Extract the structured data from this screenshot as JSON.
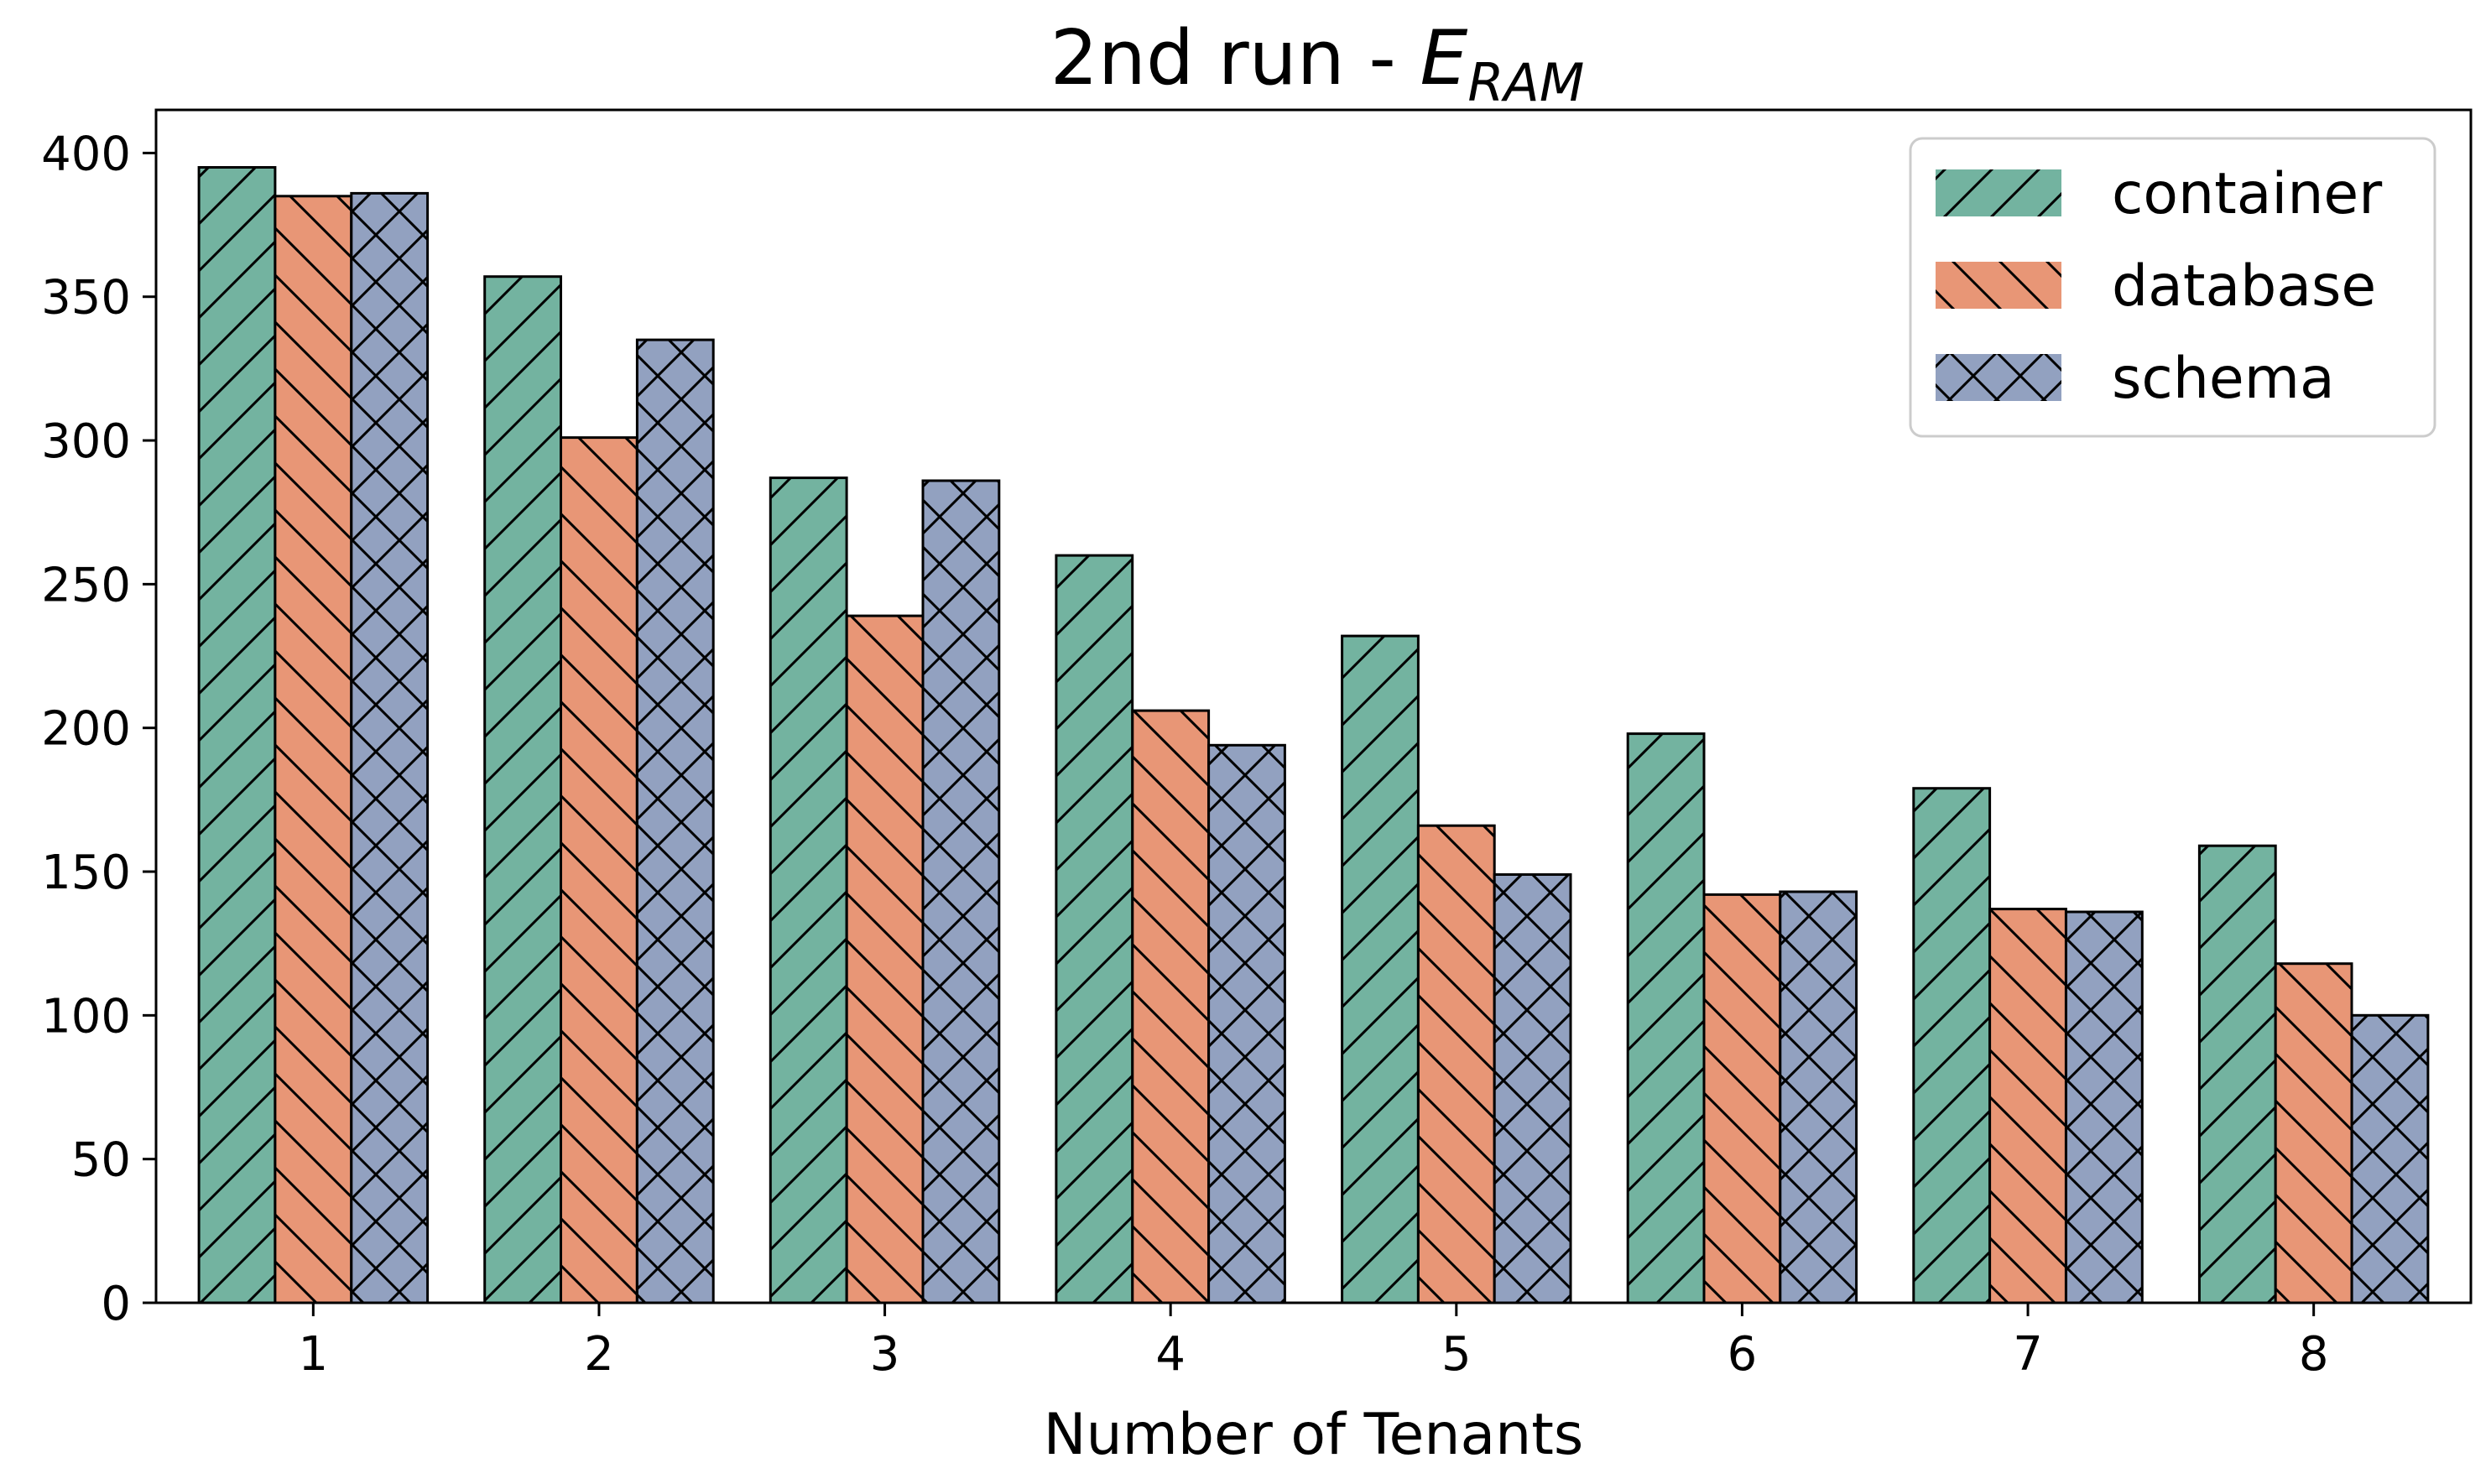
{
  "chart_data": {
    "type": "bar",
    "title": "2nd run - ",
    "title_symbol": "E",
    "title_subscript": "RAM",
    "xlabel": "Number of Tenants",
    "ylabel": "",
    "categories": [
      "1",
      "2",
      "3",
      "4",
      "5",
      "6",
      "7",
      "8"
    ],
    "series": [
      {
        "name": "container",
        "color": "#73b3a0",
        "hatch": "/",
        "values": [
          395,
          357,
          287,
          260,
          232,
          198,
          179,
          159
        ]
      },
      {
        "name": "database",
        "color": "#e89676",
        "hatch": "\\",
        "values": [
          385,
          301,
          239,
          206,
          166,
          142,
          137,
          118
        ]
      },
      {
        "name": "schema",
        "color": "#92a1c0",
        "hatch": "x",
        "values": [
          386,
          335,
          286,
          194,
          149,
          143,
          136,
          100
        ]
      }
    ],
    "ylim": [
      0,
      415
    ],
    "yticks": [
      0,
      50,
      100,
      150,
      200,
      250,
      300,
      350,
      400
    ],
    "legend_position": "top-right",
    "grid": false
  }
}
